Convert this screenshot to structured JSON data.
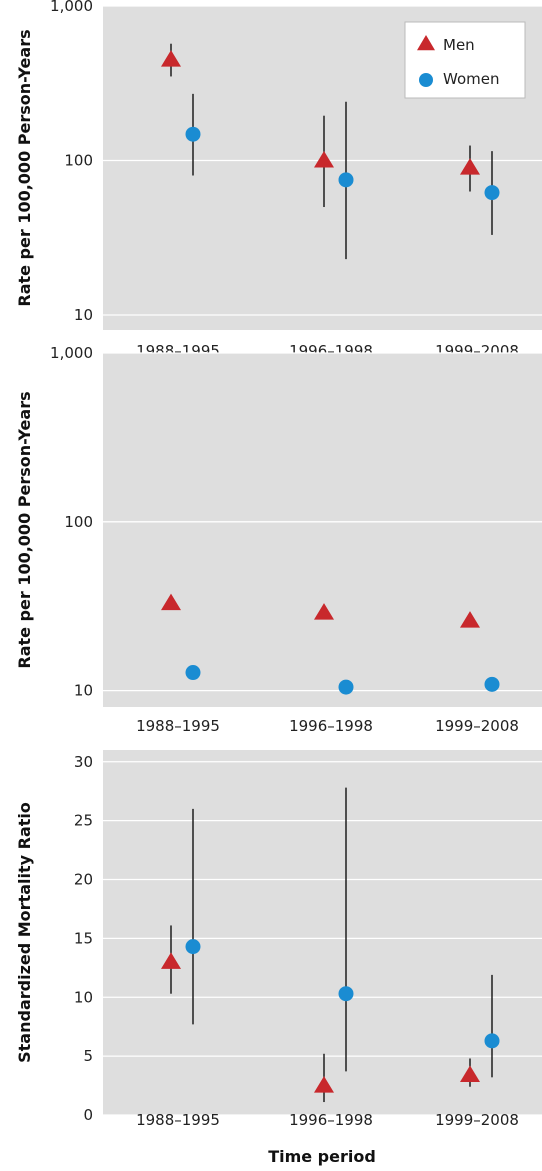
{
  "colors": {
    "panel_bg": "#dedede",
    "grid": "#ffffff",
    "men": "#c8282c",
    "women": "#1a8cd2",
    "errorbar": "#111111"
  },
  "xlabel": "Time period",
  "legend": {
    "position": "top-right",
    "items": [
      {
        "label": "Men",
        "marker": "triangle"
      },
      {
        "label": "Women",
        "marker": "circle"
      }
    ]
  },
  "chart_data": [
    {
      "type": "scatter",
      "yscale": "log",
      "ylabel": "Rate per 100,000 Person-Years",
      "ylim": [
        8,
        1000
      ],
      "yticks": [
        10,
        100,
        1000
      ],
      "yticklabels": [
        "10",
        "100",
        "1,000"
      ],
      "grid": true,
      "categories": [
        "1988–1995",
        "1996–1998",
        "1999–2008"
      ],
      "series": [
        {
          "name": "Men",
          "marker": "triangle",
          "values": [
            450,
            100,
            90
          ],
          "lower": [
            350,
            50,
            63
          ],
          "upper": [
            570,
            195,
            125
          ]
        },
        {
          "name": "Women",
          "marker": "circle",
          "values": [
            148,
            75,
            62
          ],
          "lower": [
            80,
            23,
            33
          ],
          "upper": [
            270,
            240,
            115
          ]
        }
      ]
    },
    {
      "type": "scatter",
      "yscale": "log",
      "ylabel": "Rate per 100,000 Person-Years",
      "ylim": [
        8,
        1000
      ],
      "yticks": [
        10,
        100,
        1000
      ],
      "yticklabels": [
        "10",
        "100",
        "1,000"
      ],
      "grid": true,
      "categories": [
        "1988–1995",
        "1996–1998",
        "1999–2008"
      ],
      "series": [
        {
          "name": "Men",
          "marker": "triangle",
          "values": [
            33,
            29,
            26
          ]
        },
        {
          "name": "Women",
          "marker": "circle",
          "values": [
            12.8,
            10.5,
            10.9
          ]
        }
      ]
    },
    {
      "type": "scatter",
      "yscale": "linear",
      "ylabel": "Standardized Mortality Ratio",
      "ylim": [
        0,
        31
      ],
      "yticks": [
        0,
        5,
        10,
        15,
        20,
        25,
        30
      ],
      "yticklabels": [
        "0",
        "5",
        "10",
        "15",
        "20",
        "25",
        "30"
      ],
      "grid": true,
      "categories": [
        "1988–1995",
        "1996–1998",
        "1999–2008"
      ],
      "series": [
        {
          "name": "Men",
          "marker": "triangle",
          "values": [
            13,
            2.5,
            3.4
          ],
          "lower": [
            10.3,
            1.1,
            2.4
          ],
          "upper": [
            16.1,
            5.2,
            4.8
          ]
        },
        {
          "name": "Women",
          "marker": "circle",
          "values": [
            14.3,
            10.3,
            6.3
          ],
          "lower": [
            7.7,
            3.7,
            3.2
          ],
          "upper": [
            26,
            27.8,
            11.9
          ]
        }
      ]
    }
  ]
}
